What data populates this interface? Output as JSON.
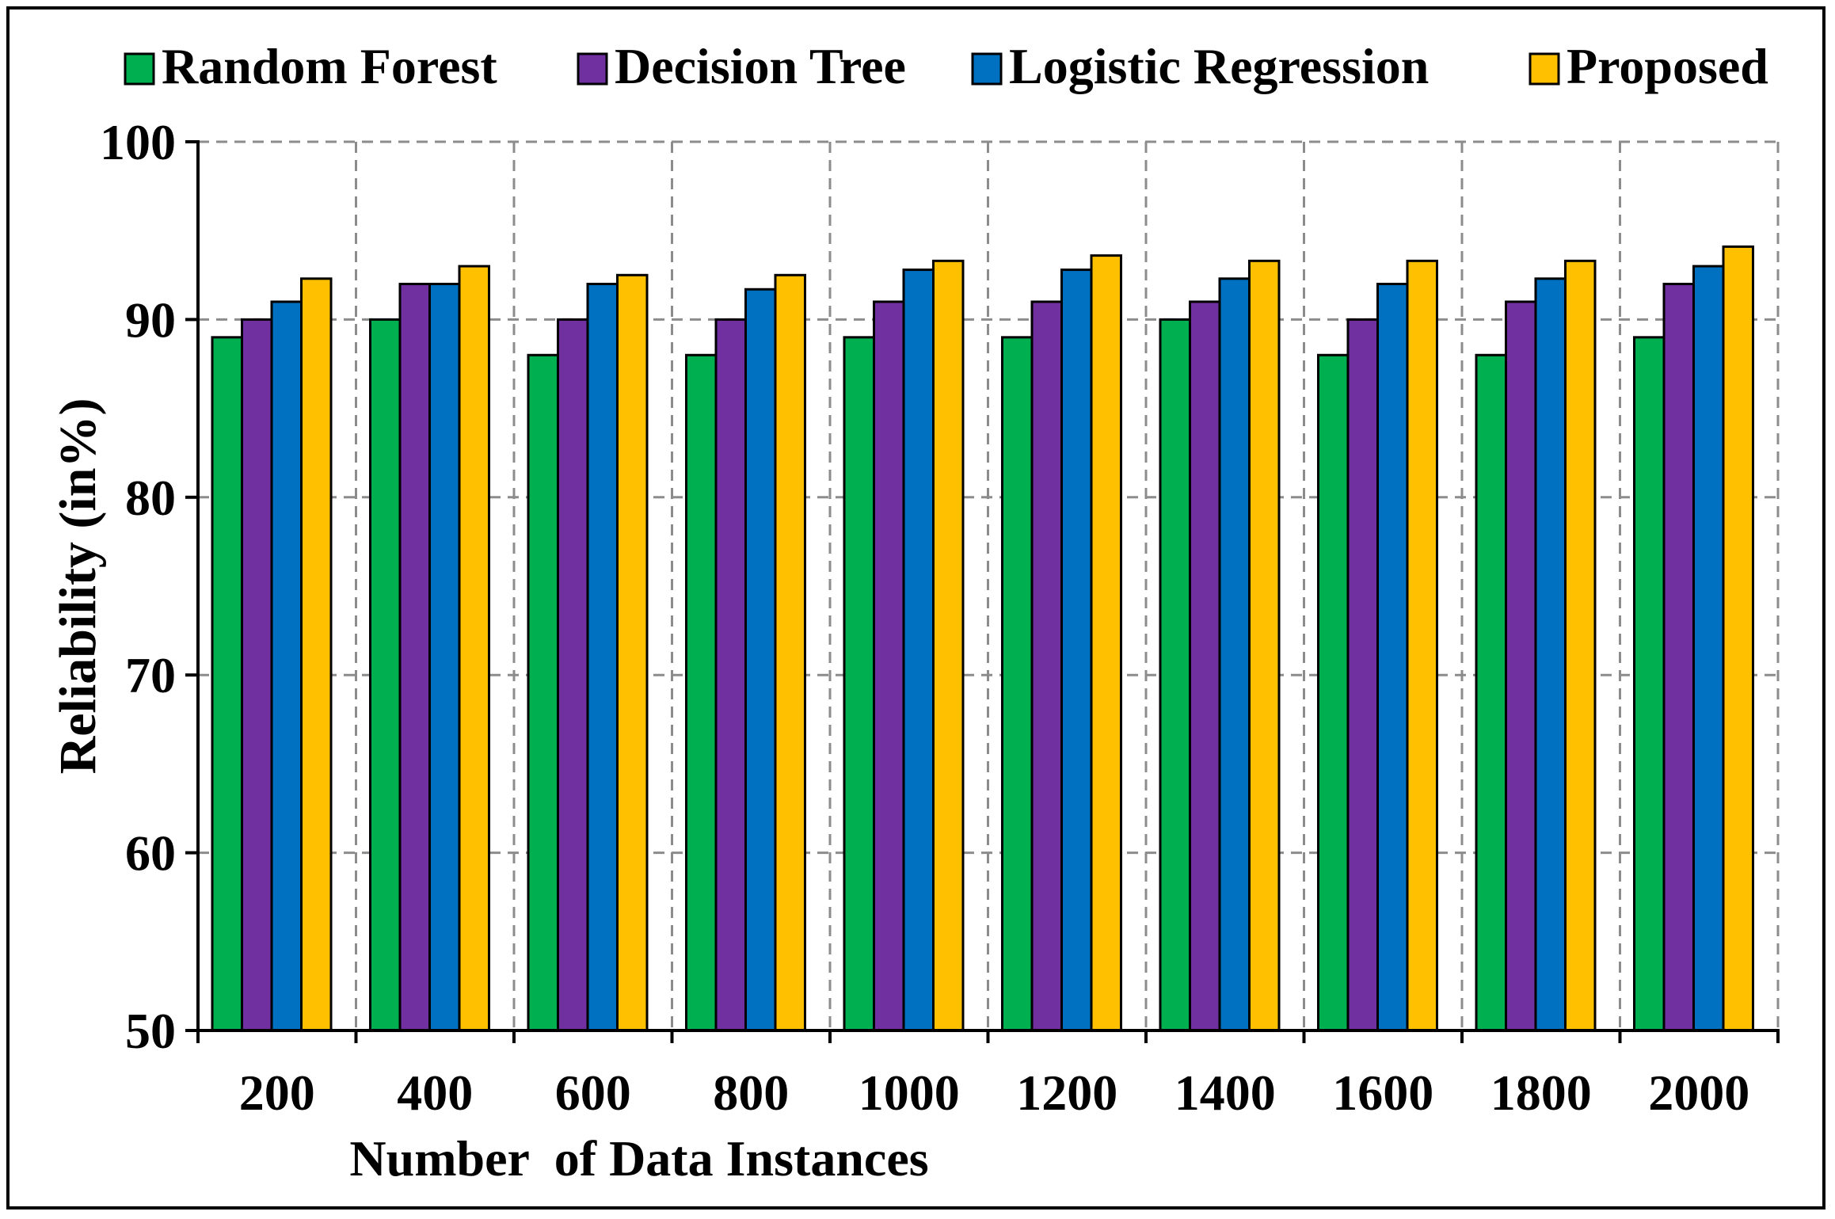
{
  "chart_data": {
    "type": "bar",
    "title": "",
    "xlabel": "Number  of Data Instances",
    "ylabel": "Reliability (in%)",
    "ylim": [
      50,
      100
    ],
    "yticks": [
      50,
      60,
      70,
      80,
      90,
      100
    ],
    "grid": true,
    "legend_position": "top",
    "categories": [
      "200",
      "400",
      "600",
      "800",
      "1000",
      "1200",
      "1400",
      "1600",
      "1800",
      "2000"
    ],
    "series": [
      {
        "name": "Random Forest",
        "color": "#00b050",
        "values": [
          89,
          90,
          88,
          88,
          89,
          89,
          90,
          88,
          88,
          89
        ]
      },
      {
        "name": "Decision Tree",
        "color": "#7030a0",
        "values": [
          90,
          92,
          90,
          90,
          91,
          91,
          91,
          90,
          91,
          92
        ]
      },
      {
        "name": "Logistic Regression",
        "color": "#0070c0",
        "values": [
          91,
          92,
          92,
          91.7,
          92.8,
          92.8,
          92.3,
          92,
          92.3,
          93
        ]
      },
      {
        "name": "Proposed",
        "color": "#ffc000",
        "values": [
          92.3,
          93,
          92.5,
          92.5,
          93.3,
          93.6,
          93.3,
          93.3,
          93.3,
          94.1
        ]
      }
    ]
  }
}
